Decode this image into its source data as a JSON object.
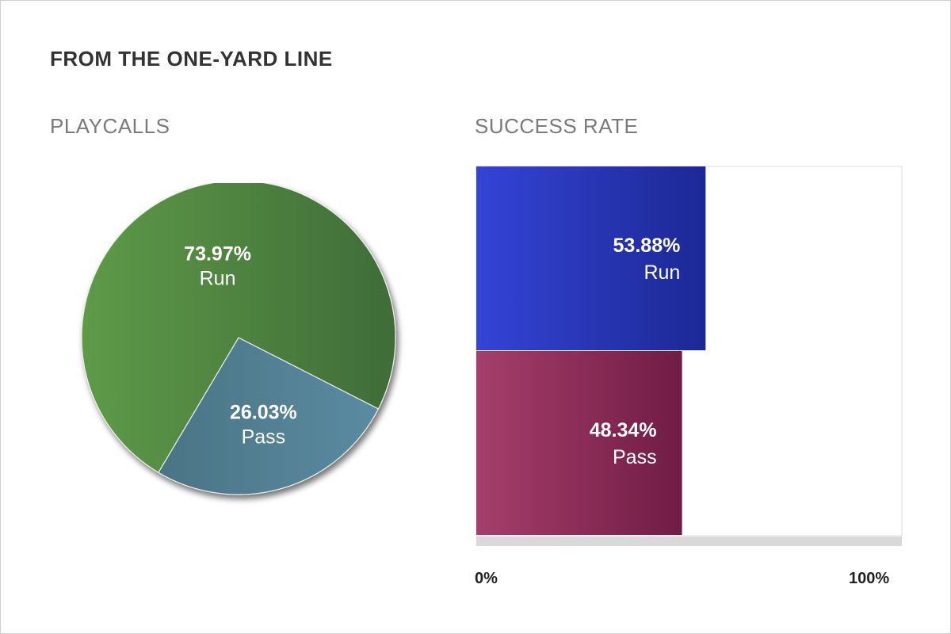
{
  "title": "FROM THE ONE-YARD LINE",
  "chart_data": [
    {
      "type": "pie",
      "title": "PLAYCALLS",
      "slices": [
        {
          "label": "Pass",
          "value": 26.03,
          "value_label": "26.03%",
          "color": "#4f7b8f"
        },
        {
          "label": "Run",
          "value": 73.97,
          "value_label": "73.97%",
          "color": "#4e8540"
        }
      ]
    },
    {
      "type": "bar",
      "orientation": "horizontal",
      "title": "SUCCESS RATE",
      "categories": [
        "Run",
        "Pass"
      ],
      "values": [
        53.88,
        48.34
      ],
      "value_labels": [
        "53.88%",
        "48.34%"
      ],
      "colors": [
        "#2a36c0",
        "#9a2f5e"
      ],
      "xlim": [
        0,
        100
      ],
      "tick_labels": [
        "0%",
        "100%"
      ]
    }
  ]
}
